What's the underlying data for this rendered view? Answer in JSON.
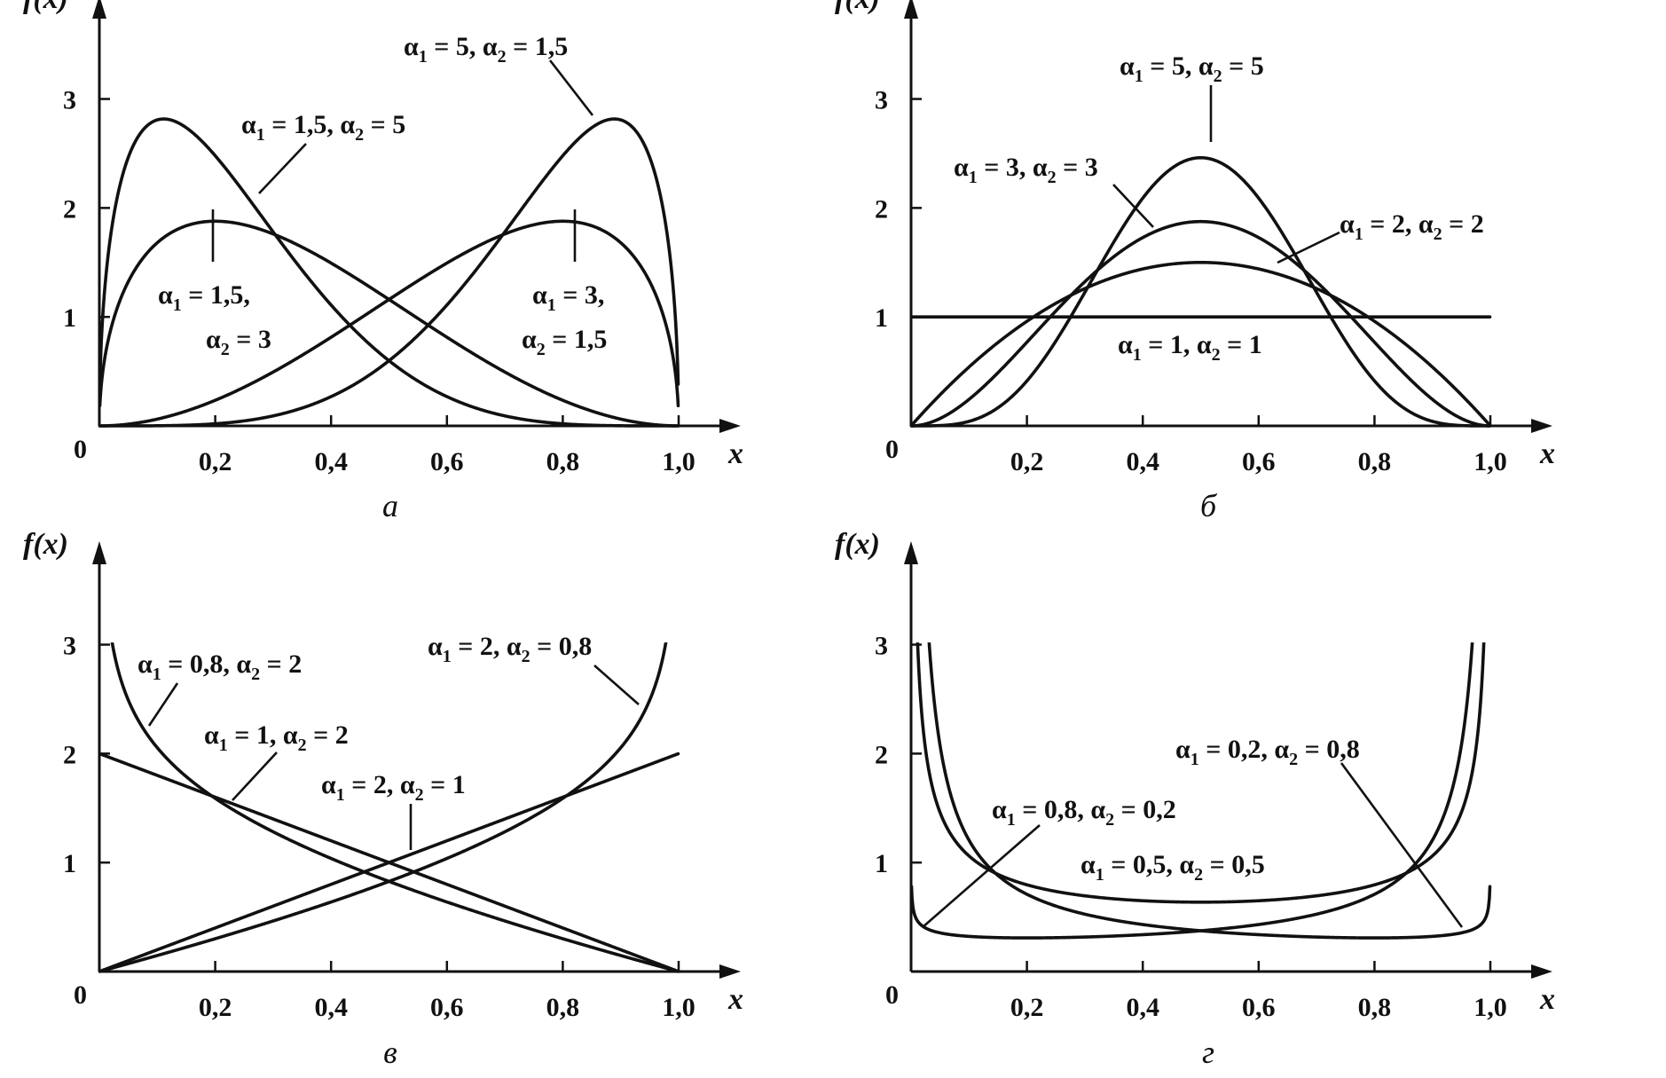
{
  "figure": {
    "panels_order": [
      "a",
      "b",
      "v",
      "g"
    ]
  },
  "chart_data": [
    {
      "id": "a",
      "type": "line",
      "panel_label": "а",
      "ylabel": "f(x)",
      "xlabel": "x",
      "origin_label": "0",
      "xlim": [
        0,
        1.0
      ],
      "ylim": [
        0,
        3.2
      ],
      "xticks": [
        {
          "v": 0.2,
          "label": "0,2"
        },
        {
          "v": 0.4,
          "label": "0,4"
        },
        {
          "v": 0.6,
          "label": "0,6"
        },
        {
          "v": 0.8,
          "label": "0,8"
        },
        {
          "v": 1.0,
          "label": "1,0"
        }
      ],
      "yticks": [
        {
          "v": 1,
          "label": "1"
        },
        {
          "v": 2,
          "label": "2"
        },
        {
          "v": 3,
          "label": "3"
        }
      ],
      "series": [
        {
          "a1": 1.5,
          "a2": 5,
          "label": [
            "α",
            "1",
            " = 1,5, ",
            "α",
            "2",
            " = 5"
          ]
        },
        {
          "a1": 5,
          "a2": 1.5,
          "label": [
            "α",
            "1",
            " = 5, ",
            "α",
            "2",
            " = 1,5"
          ]
        },
        {
          "a1": 1.5,
          "a2": 3,
          "label_lines": [
            [
              "α",
              "1",
              " = 1,5,"
            ],
            [
              "α",
              "2",
              " = 3"
            ]
          ]
        },
        {
          "a1": 3,
          "a2": 1.5,
          "label_lines": [
            [
              "α",
              "1",
              " = 3,"
            ],
            [
              "α",
              "2",
              " = 1,5"
            ]
          ]
        }
      ]
    },
    {
      "id": "b",
      "type": "line",
      "panel_label": "б",
      "ylabel": "f(x)",
      "xlabel": "x",
      "origin_label": "0",
      "xlim": [
        0,
        1.0
      ],
      "ylim": [
        0,
        3.2
      ],
      "xticks": [
        {
          "v": 0.2,
          "label": "0,2"
        },
        {
          "v": 0.4,
          "label": "0,4"
        },
        {
          "v": 0.6,
          "label": "0,6"
        },
        {
          "v": 0.8,
          "label": "0,8"
        },
        {
          "v": 1.0,
          "label": "1,0"
        }
      ],
      "yticks": [
        {
          "v": 1,
          "label": "1"
        },
        {
          "v": 2,
          "label": "2"
        },
        {
          "v": 3,
          "label": "3"
        }
      ],
      "series": [
        {
          "a1": 5,
          "a2": 5,
          "label": [
            "α",
            "1",
            " = 5, ",
            "α",
            "2",
            " = 5"
          ]
        },
        {
          "a1": 3,
          "a2": 3,
          "label": [
            "α",
            "1",
            " = 3, ",
            "α",
            "2",
            " = 3"
          ]
        },
        {
          "a1": 2,
          "a2": 2,
          "label": [
            "α",
            "1",
            " = 2, ",
            "α",
            "2",
            " = 2"
          ]
        },
        {
          "a1": 1,
          "a2": 1,
          "label": [
            "α",
            "1",
            " = 1, ",
            "α",
            "2",
            " = 1"
          ]
        }
      ]
    },
    {
      "id": "v",
      "type": "line",
      "panel_label": "в",
      "ylabel": "f(x)",
      "xlabel": "x",
      "origin_label": "0",
      "xlim": [
        0,
        1.0
      ],
      "ylim": [
        0,
        3.2
      ],
      "xticks": [
        {
          "v": 0.2,
          "label": "0,2"
        },
        {
          "v": 0.4,
          "label": "0,4"
        },
        {
          "v": 0.6,
          "label": "0,6"
        },
        {
          "v": 0.8,
          "label": "0,8"
        },
        {
          "v": 1.0,
          "label": "1,0"
        }
      ],
      "yticks": [
        {
          "v": 1,
          "label": "1"
        },
        {
          "v": 2,
          "label": "2"
        },
        {
          "v": 3,
          "label": "3"
        }
      ],
      "series": [
        {
          "a1": 0.8,
          "a2": 2,
          "label": [
            "α",
            "1",
            " = 0,8, ",
            "α",
            "2",
            " = 2"
          ]
        },
        {
          "a1": 2,
          "a2": 0.8,
          "label": [
            "α",
            "1",
            " = 2, ",
            "α",
            "2",
            " = 0,8"
          ]
        },
        {
          "a1": 1,
          "a2": 2,
          "label": [
            "α",
            "1",
            " = 1, ",
            "α",
            "2",
            " = 2"
          ]
        },
        {
          "a1": 2,
          "a2": 1,
          "label": [
            "α",
            "1",
            " = 2, ",
            "α",
            "2",
            " = 1"
          ]
        }
      ]
    },
    {
      "id": "g",
      "type": "line",
      "panel_label": "г",
      "ylabel": "f(x)",
      "xlabel": "x",
      "origin_label": "0",
      "xlim": [
        0,
        1.0
      ],
      "ylim": [
        0,
        3.2
      ],
      "xticks": [
        {
          "v": 0.2,
          "label": "0,2"
        },
        {
          "v": 0.4,
          "label": "0,4"
        },
        {
          "v": 0.6,
          "label": "0,6"
        },
        {
          "v": 0.8,
          "label": "0,8"
        },
        {
          "v": 1.0,
          "label": "1,0"
        }
      ],
      "yticks": [
        {
          "v": 1,
          "label": "1"
        },
        {
          "v": 2,
          "label": "2"
        },
        {
          "v": 3,
          "label": "3"
        }
      ],
      "series": [
        {
          "a1": 0.2,
          "a2": 0.8,
          "label": [
            "α",
            "1",
            " = 0,2, ",
            "α",
            "2",
            " = 0,8"
          ]
        },
        {
          "a1": 0.8,
          "a2": 0.2,
          "label": [
            "α",
            "1",
            " = 0,8, ",
            "α",
            "2",
            " = 0,2"
          ]
        },
        {
          "a1": 0.5,
          "a2": 0.5,
          "label": [
            "α",
            "1",
            " = 0,5, ",
            "α",
            "2",
            " = 0,5"
          ]
        }
      ]
    }
  ]
}
